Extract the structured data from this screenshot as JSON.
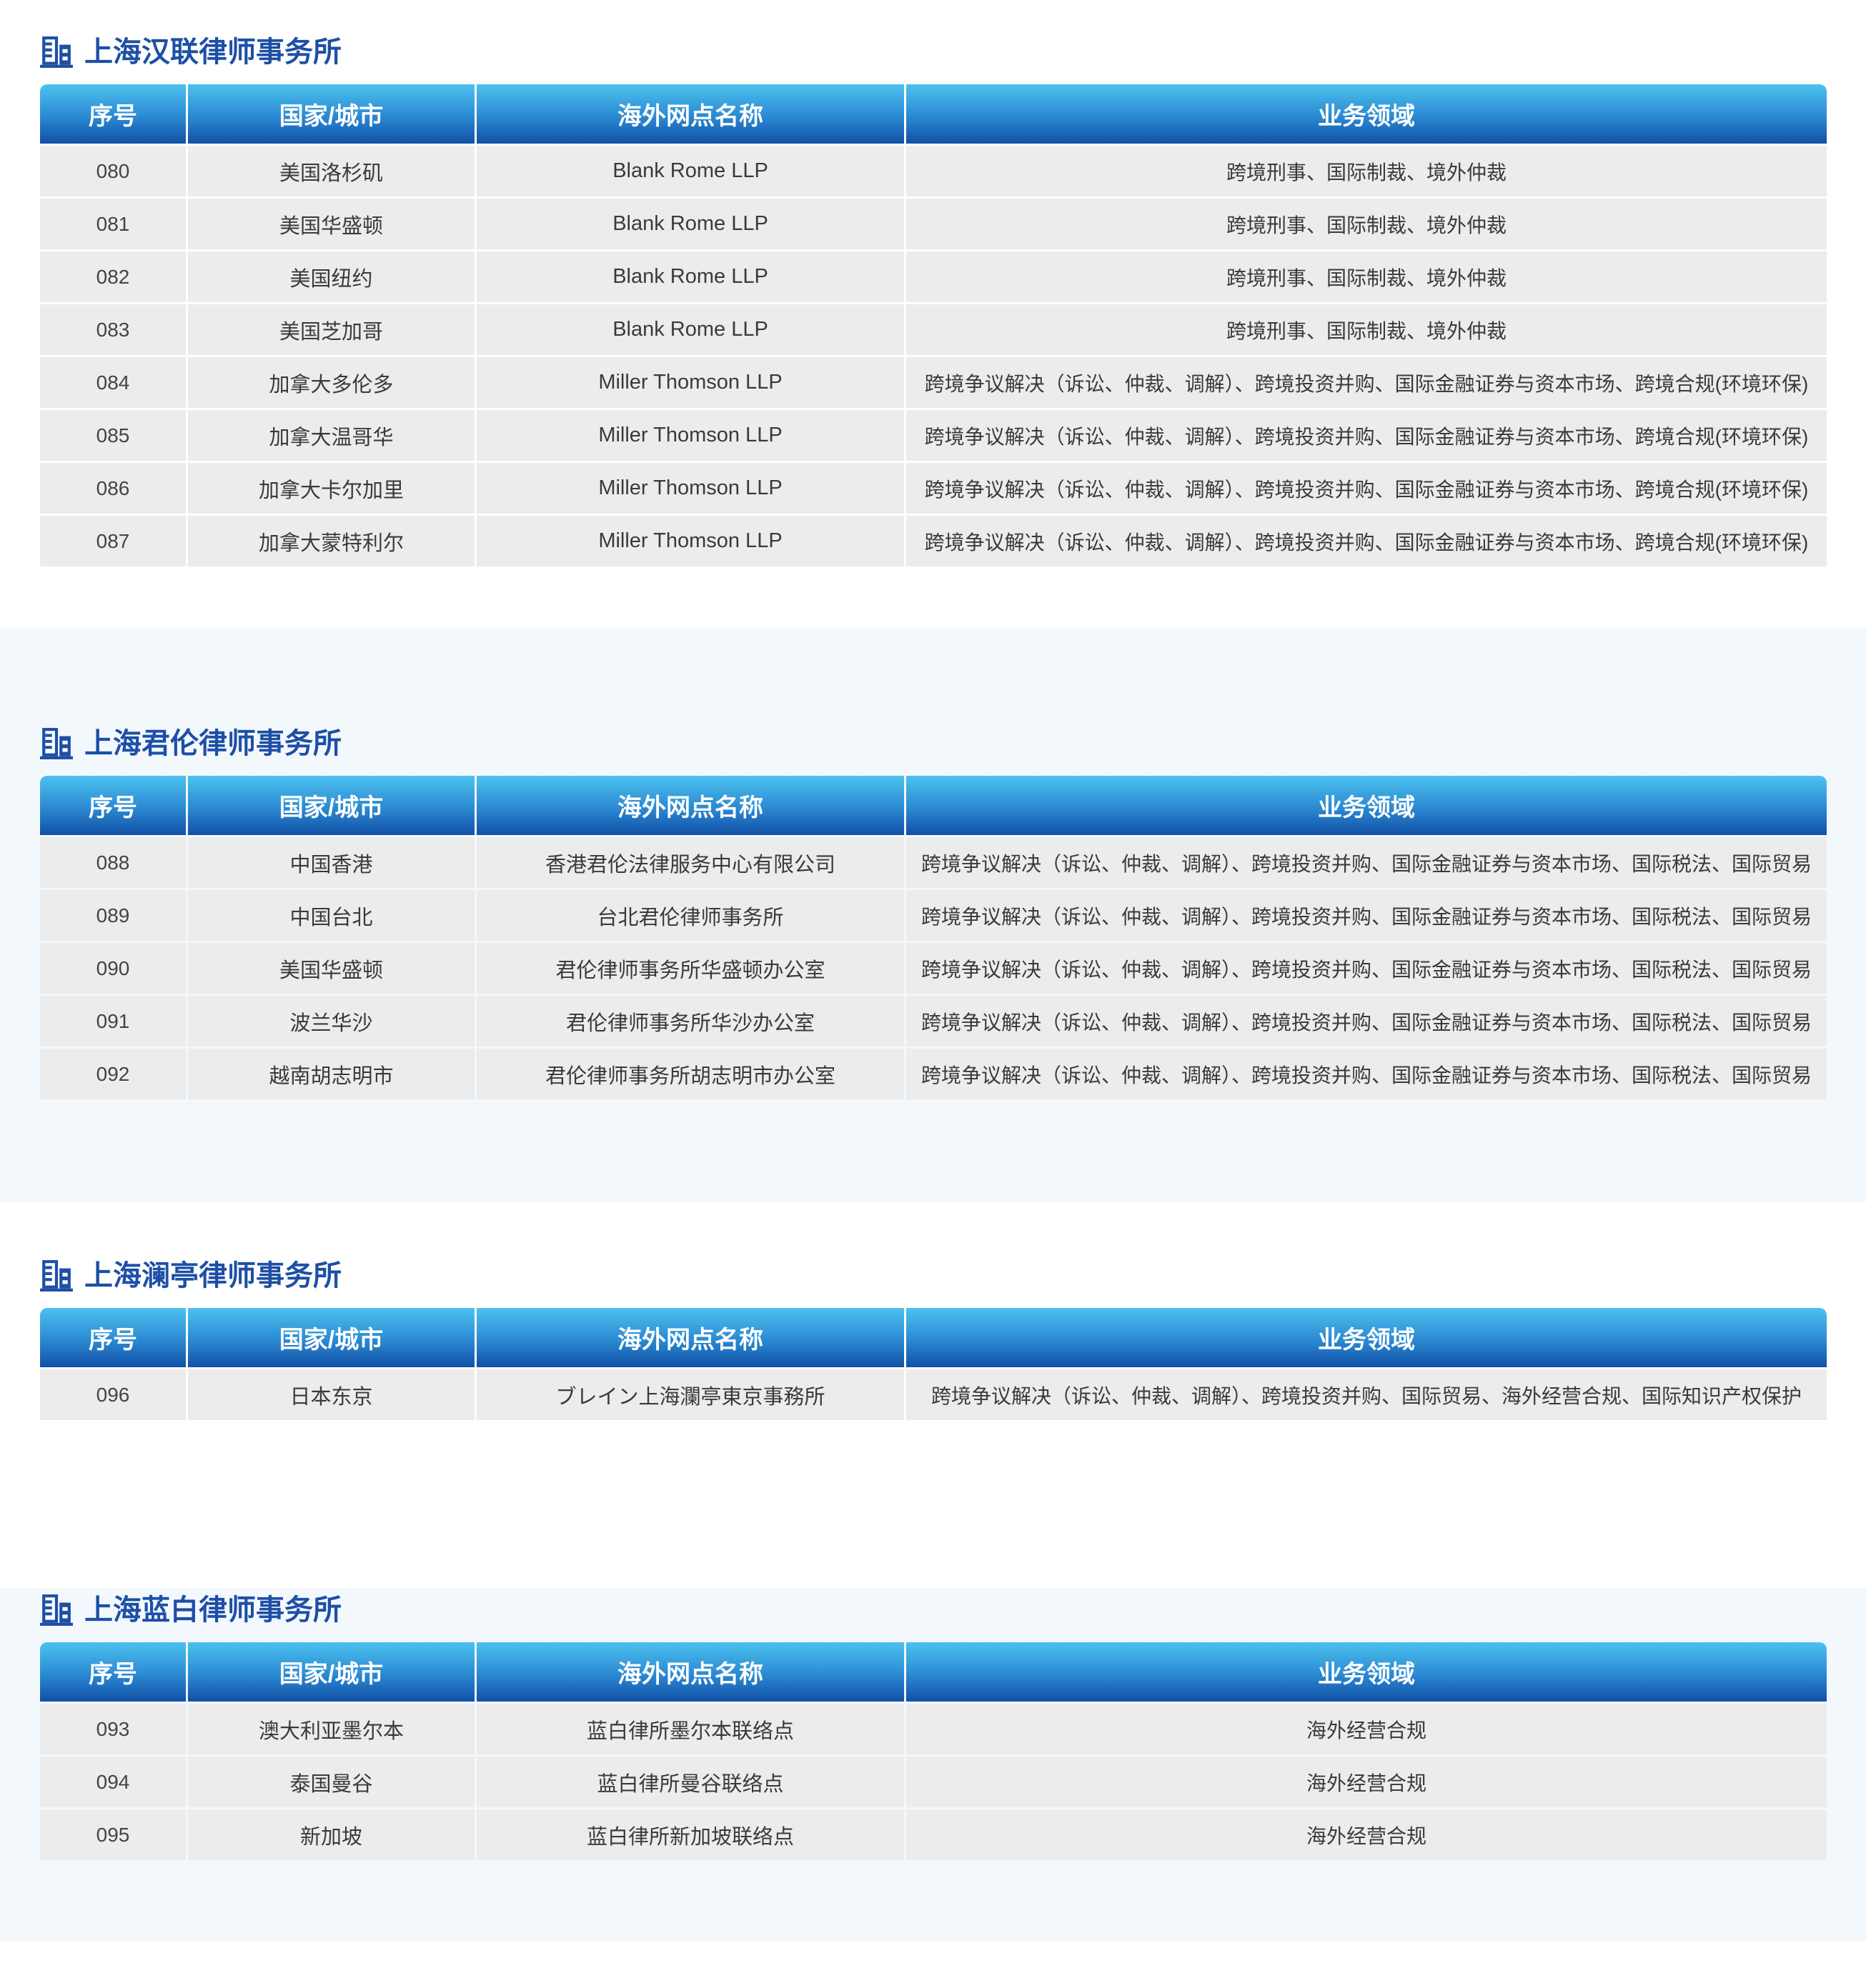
{
  "colors": {
    "title_blue": "#1d4fa6",
    "header_gradient_top": "#4cc2ef",
    "header_gradient_bottom": "#1150a6",
    "row_background": "#ececec",
    "band_light_blue": "#f3f8fd"
  },
  "sections": [
    {
      "title": "上海汉联律师事务所",
      "band": "white",
      "columns": [
        "序号",
        "国家/城市",
        "海外网点名称",
        "业务领域"
      ],
      "rows": [
        {
          "no": "080",
          "city": "美国洛杉矶",
          "office": "Blank Rome LLP",
          "areas": "跨境刑事、国际制裁、境外仲裁"
        },
        {
          "no": "081",
          "city": "美国华盛顿",
          "office": "Blank Rome LLP",
          "areas": "跨境刑事、国际制裁、境外仲裁"
        },
        {
          "no": "082",
          "city": "美国纽约",
          "office": "Blank Rome LLP",
          "areas": "跨境刑事、国际制裁、境外仲裁"
        },
        {
          "no": "083",
          "city": "美国芝加哥",
          "office": "Blank Rome LLP",
          "areas": "跨境刑事、国际制裁、境外仲裁"
        },
        {
          "no": "084",
          "city": "加拿大多伦多",
          "office": "Miller Thomson LLP",
          "areas": "跨境争议解决（诉讼、仲裁、调解）、跨境投资并购、国际金融证券与资本市场、跨境合规(环境环保)"
        },
        {
          "no": "085",
          "city": "加拿大温哥华",
          "office": "Miller Thomson LLP",
          "areas": "跨境争议解决（诉讼、仲裁、调解）、跨境投资并购、国际金融证券与资本市场、跨境合规(环境环保)"
        },
        {
          "no": "086",
          "city": "加拿大卡尔加里",
          "office": "Miller Thomson LLP",
          "areas": "跨境争议解决（诉讼、仲裁、调解）、跨境投资并购、国际金融证券与资本市场、跨境合规(环境环保)"
        },
        {
          "no": "087",
          "city": "加拿大蒙特利尔",
          "office": "Miller Thomson LLP",
          "areas": "跨境争议解决（诉讼、仲裁、调解）、跨境投资并购、国际金融证券与资本市场、跨境合规(环境环保)"
        }
      ]
    },
    {
      "title": "上海君伦律师事务所",
      "band": "blue",
      "columns": [
        "序号",
        "国家/城市",
        "海外网点名称",
        "业务领域"
      ],
      "rows": [
        {
          "no": "088",
          "city": "中国香港",
          "office": "香港君伦法律服务中心有限公司",
          "areas": "跨境争议解决（诉讼、仲裁、调解）、跨境投资并购、国际金融证券与资本市场、国际税法、国际贸易"
        },
        {
          "no": "089",
          "city": "中国台北",
          "office": "台北君伦律师事务所",
          "areas": "跨境争议解决（诉讼、仲裁、调解）、跨境投资并购、国际金融证券与资本市场、国际税法、国际贸易"
        },
        {
          "no": "090",
          "city": "美国华盛顿",
          "office": "君伦律师事务所华盛顿办公室",
          "areas": "跨境争议解决（诉讼、仲裁、调解）、跨境投资并购、国际金融证券与资本市场、国际税法、国际贸易"
        },
        {
          "no": "091",
          "city": "波兰华沙",
          "office": "君伦律师事务所华沙办公室",
          "areas": "跨境争议解决（诉讼、仲裁、调解）、跨境投资并购、国际金融证券与资本市场、国际税法、国际贸易"
        },
        {
          "no": "092",
          "city": "越南胡志明市",
          "office": "君伦律师事务所胡志明市办公室",
          "areas": "跨境争议解决（诉讼、仲裁、调解）、跨境投资并购、国际金融证券与资本市场、国际税法、国际贸易"
        }
      ]
    },
    {
      "title": "上海澜亭律师事务所",
      "band": "white",
      "columns": [
        "序号",
        "国家/城市",
        "海外网点名称",
        "业务领域"
      ],
      "rows": [
        {
          "no": "096",
          "city": "日本东京",
          "office": "ブレイン上海瀾亭東京事務所",
          "areas": "跨境争议解决（诉讼、仲裁、调解）、跨境投资并购、国际贸易、海外经营合规、国际知识产权保护"
        }
      ]
    },
    {
      "title": "上海蓝白律师事务所",
      "band": "blue",
      "columns": [
        "序号",
        "国家/城市",
        "海外网点名称",
        "业务领域"
      ],
      "rows": [
        {
          "no": "093",
          "city": "澳大利亚墨尔本",
          "office": "蓝白律所墨尔本联络点",
          "areas": "海外经营合规"
        },
        {
          "no": "094",
          "city": "泰国曼谷",
          "office": "蓝白律所曼谷联络点",
          "areas": "海外经营合规"
        },
        {
          "no": "095",
          "city": "新加坡",
          "office": "蓝白律所新加坡联络点",
          "areas": "海外经营合规"
        }
      ]
    }
  ]
}
